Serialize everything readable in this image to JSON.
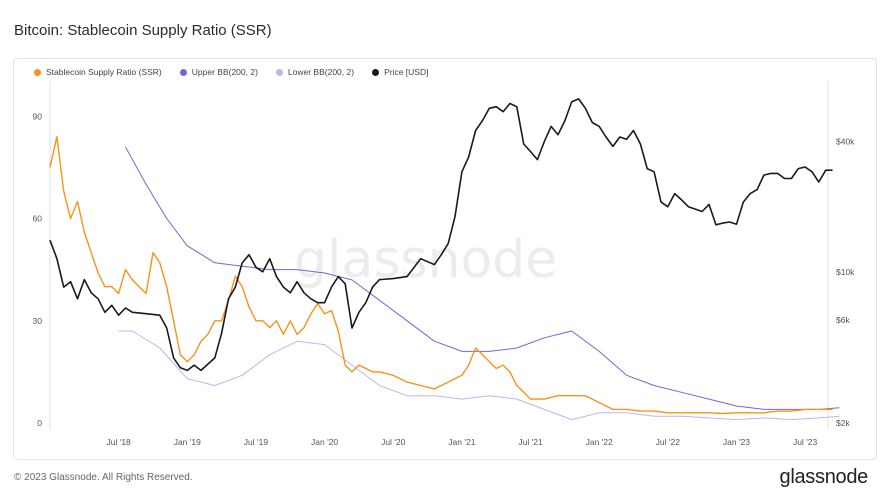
{
  "title": "Bitcoin: Stablecoin Supply Ratio (SSR)",
  "footer": "© 2023 Glassnode. All Rights Reserved.",
  "brand": "glassnode",
  "watermark": "glassnode",
  "colors": {
    "ssr": "#f7931a",
    "upper_bb": "#6b6bd6",
    "lower_bb": "#b9b6f0",
    "price": "#1a1a1a"
  },
  "chart_data": {
    "type": "line",
    "legend": [
      {
        "name": "Stablecoin Supply Ratio (SSR)",
        "color": "#f7931a"
      },
      {
        "name": "Upper BB(200, 2)",
        "color": "#6b6bd6"
      },
      {
        "name": "Lower BB(200, 2)",
        "color": "#b9b6f0"
      },
      {
        "name": "Price [USD]",
        "color": "#1a1a1a"
      }
    ],
    "legend_position": "top-left",
    "x_ticks": [
      "Jul '18",
      "Jan '19",
      "Jul '19",
      "Jan '20",
      "Jul '20",
      "Jan '21",
      "Jul '21",
      "Jan '22",
      "Jul '22",
      "Jan '23",
      "Jul '23"
    ],
    "x_range": [
      "2018-01",
      "2023-09"
    ],
    "y_left": {
      "ticks": [
        "0",
        "30",
        "60",
        "90"
      ],
      "range": [
        0,
        98
      ]
    },
    "y_right": {
      "scale": "log",
      "ticks": [
        "$2k",
        "$6k",
        "$10k",
        "$40k"
      ],
      "range": [
        2000,
        70000
      ]
    },
    "grid": false,
    "series": [
      {
        "name": "Stablecoin Supply Ratio (SSR)",
        "axis": "left",
        "x": [
          2018.0,
          2018.05,
          2018.1,
          2018.15,
          2018.2,
          2018.25,
          2018.3,
          2018.35,
          2018.4,
          2018.45,
          2018.5,
          2018.55,
          2018.6,
          2018.65,
          2018.7,
          2018.75,
          2018.8,
          2018.85,
          2018.9,
          2018.95,
          2019.0,
          2019.05,
          2019.1,
          2019.15,
          2019.2,
          2019.25,
          2019.3,
          2019.35,
          2019.4,
          2019.45,
          2019.5,
          2019.55,
          2019.6,
          2019.65,
          2019.7,
          2019.75,
          2019.8,
          2019.85,
          2019.9,
          2019.95,
          2020.0,
          2020.05,
          2020.1,
          2020.15,
          2020.2,
          2020.25,
          2020.3,
          2020.35,
          2020.4,
          2020.5,
          2020.6,
          2020.7,
          2020.8,
          2020.9,
          2021.0,
          2021.05,
          2021.1,
          2021.15,
          2021.2,
          2021.25,
          2021.3,
          2021.35,
          2021.4,
          2021.45,
          2021.5,
          2021.6,
          2021.7,
          2021.8,
          2021.9,
          2022.0,
          2022.1,
          2022.2,
          2022.3,
          2022.4,
          2022.5,
          2022.6,
          2022.7,
          2022.8,
          2022.9,
          2023.0,
          2023.1,
          2023.2,
          2023.3,
          2023.4,
          2023.5,
          2023.6,
          2023.7
        ],
        "y": [
          75,
          84,
          68,
          60,
          65,
          56,
          50,
          44,
          40,
          40,
          38,
          45,
          42,
          40,
          38,
          50,
          47,
          40,
          30,
          20,
          18,
          20,
          24,
          26,
          30,
          30,
          36,
          43,
          40,
          34,
          30,
          30,
          28,
          30,
          26,
          30,
          26,
          28,
          32,
          35,
          32,
          33,
          27,
          17,
          15,
          17,
          16,
          15,
          15,
          14,
          12,
          11,
          10,
          12,
          14,
          17,
          22,
          20,
          18,
          16,
          17,
          15,
          11,
          9,
          7,
          7,
          8,
          8,
          8,
          6,
          4,
          4,
          3.5,
          3.5,
          3,
          3,
          3,
          3,
          2.8,
          3,
          3,
          3,
          3.5,
          3.5,
          4,
          4,
          4
        ]
      },
      {
        "name": "Upper BB(200, 2)",
        "axis": "left",
        "x": [
          2018.55,
          2018.7,
          2018.85,
          2019.0,
          2019.2,
          2019.4,
          2019.6,
          2019.8,
          2020.0,
          2020.2,
          2020.4,
          2020.6,
          2020.8,
          2021.0,
          2021.2,
          2021.4,
          2021.6,
          2021.8,
          2022.0,
          2022.2,
          2022.4,
          2022.6,
          2022.8,
          2023.0,
          2023.2,
          2023.4,
          2023.6,
          2023.75
        ],
        "y": [
          81,
          70,
          60,
          52,
          47,
          46,
          45,
          45,
          44,
          42,
          36,
          30,
          24,
          21,
          21,
          22,
          25,
          27,
          21,
          14,
          11,
          9,
          7,
          5,
          4,
          4,
          4,
          4.5
        ]
      },
      {
        "name": "Lower BB(200, 2)",
        "axis": "left",
        "x": [
          2018.5,
          2018.6,
          2018.8,
          2019.0,
          2019.2,
          2019.4,
          2019.5,
          2019.6,
          2019.8,
          2020.0,
          2020.2,
          2020.4,
          2020.6,
          2020.8,
          2021.0,
          2021.2,
          2021.4,
          2021.6,
          2021.8,
          2022.0,
          2022.2,
          2022.4,
          2022.6,
          2022.8,
          2023.0,
          2023.2,
          2023.4,
          2023.6,
          2023.75
        ],
        "y": [
          27,
          27,
          22,
          13,
          11,
          14,
          17,
          20,
          24,
          23,
          17,
          11,
          8,
          8,
          7,
          8,
          7,
          4,
          1,
          3,
          3,
          2,
          2,
          1.5,
          1,
          1.5,
          1,
          1.5,
          2
        ]
      },
      {
        "name": "Price [USD]",
        "axis": "right",
        "x": [
          2018.0,
          2018.05,
          2018.1,
          2018.15,
          2018.2,
          2018.25,
          2018.3,
          2018.35,
          2018.4,
          2018.45,
          2018.5,
          2018.55,
          2018.6,
          2018.7,
          2018.8,
          2018.85,
          2018.9,
          2018.95,
          2019.0,
          2019.05,
          2019.1,
          2019.2,
          2019.25,
          2019.3,
          2019.35,
          2019.4,
          2019.45,
          2019.5,
          2019.55,
          2019.6,
          2019.65,
          2019.7,
          2019.75,
          2019.8,
          2019.85,
          2019.9,
          2019.95,
          2020.0,
          2020.05,
          2020.1,
          2020.15,
          2020.2,
          2020.25,
          2020.3,
          2020.35,
          2020.4,
          2020.5,
          2020.6,
          2020.7,
          2020.8,
          2020.85,
          2020.9,
          2020.95,
          2021.0,
          2021.05,
          2021.1,
          2021.15,
          2021.2,
          2021.25,
          2021.3,
          2021.35,
          2021.4,
          2021.45,
          2021.5,
          2021.55,
          2021.6,
          2021.65,
          2021.7,
          2021.75,
          2021.8,
          2021.85,
          2021.9,
          2021.95,
          2022.0,
          2022.05,
          2022.1,
          2022.15,
          2022.2,
          2022.25,
          2022.3,
          2022.35,
          2022.4,
          2022.45,
          2022.5,
          2022.55,
          2022.6,
          2022.65,
          2022.7,
          2022.75,
          2022.8,
          2022.85,
          2022.9,
          2022.95,
          2023.0,
          2023.05,
          2023.1,
          2023.15,
          2023.2,
          2023.25,
          2023.3,
          2023.35,
          2023.4,
          2023.45,
          2023.5,
          2023.55,
          2023.6,
          2023.65,
          2023.7
        ],
        "y": [
          14000,
          11500,
          8500,
          9000,
          7500,
          9200,
          8000,
          7500,
          6500,
          7000,
          6300,
          6800,
          6500,
          6400,
          6300,
          5500,
          4000,
          3600,
          3500,
          3700,
          3500,
          4000,
          5200,
          7500,
          8500,
          11000,
          12000,
          10500,
          10000,
          11500,
          9500,
          8500,
          8000,
          9000,
          8000,
          7500,
          7200,
          7200,
          8500,
          9500,
          8800,
          5500,
          6500,
          7200,
          8500,
          9200,
          9300,
          9500,
          11500,
          10800,
          12000,
          13500,
          18000,
          29000,
          34000,
          45000,
          50000,
          57000,
          58000,
          55000,
          60000,
          58000,
          39000,
          36000,
          33000,
          40000,
          47000,
          43000,
          50000,
          61000,
          63000,
          57000,
          49000,
          47000,
          42000,
          38000,
          42000,
          41000,
          45000,
          39000,
          30000,
          29000,
          21000,
          20000,
          23000,
          21500,
          20000,
          19500,
          19000,
          20500,
          16500,
          16800,
          17000,
          16600,
          21000,
          23000,
          24000,
          28000,
          28500,
          28500,
          27000,
          27000,
          30000,
          30500,
          29000,
          26000,
          29500,
          29500
        ]
      }
    ]
  }
}
